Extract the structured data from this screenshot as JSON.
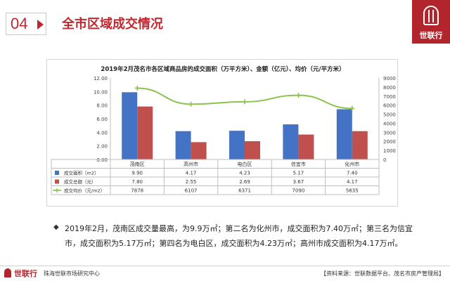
{
  "header": {
    "section_number": "04",
    "title": "全市区域成交情况"
  },
  "logo": {
    "text": "世联行"
  },
  "chart_data": {
    "type": "bar",
    "title": "2019年2月茂名市各区域商品房的成交面积（万平方米）、金额（亿元）、均价（元/平方米）",
    "categories": [
      "茂南区",
      "高州市",
      "电白区",
      "信宜市",
      "化州市"
    ],
    "series": [
      {
        "name": "成交面积（m2）",
        "type": "bar",
        "axis": "left",
        "color": "#4472c4",
        "values": [
          9.9,
          4.17,
          4.23,
          5.17,
          7.4
        ],
        "labels": [
          "9.90",
          "4.17",
          "4.23",
          "5.17",
          "7.40"
        ]
      },
      {
        "name": "成交总额（元）",
        "type": "bar",
        "axis": "left",
        "color": "#c0504d",
        "values": [
          7.8,
          2.55,
          2.69,
          3.67,
          4.17
        ],
        "labels": [
          "7.80",
          "2.55",
          "2.69",
          "3.67",
          "4.17"
        ]
      },
      {
        "name": "成交均价（元/m2）",
        "type": "line",
        "axis": "right",
        "color": "#8bc34a",
        "values": [
          7878,
          6107,
          6371,
          7090,
          5635
        ],
        "labels": [
          "7878",
          "6107",
          "6371",
          "7090",
          "5635"
        ]
      }
    ],
    "y_left": {
      "min": 0,
      "max": 12,
      "step": 2,
      "ticks": [
        "0.00",
        "2.00",
        "4.00",
        "6.00",
        "8.00",
        "10.00",
        "12.00"
      ]
    },
    "y_right": {
      "min": 0,
      "max": 9000,
      "step": 1000,
      "ticks": [
        "0",
        "1000",
        "2000",
        "3000",
        "4000",
        "5000",
        "6000",
        "7000",
        "8000",
        "9000"
      ]
    },
    "grid": false,
    "legend": "bottom-table"
  },
  "summary": {
    "bullet": "◆",
    "text": "2019年2月，茂南区成交量最高，为9.9万㎡；第二名为化州市，成交面积为7.40万㎡；第三名为信宜市，成交面积为5.17万㎡；第四名为电白区，成交面积为4.23万㎡；高州市成交面积为4.17万㎡。"
  },
  "footer": {
    "brand": "世联行",
    "center": "珠海世联市场研究中心",
    "source": "【资料来源：世联数据平台、茂名市房产管理局】"
  }
}
